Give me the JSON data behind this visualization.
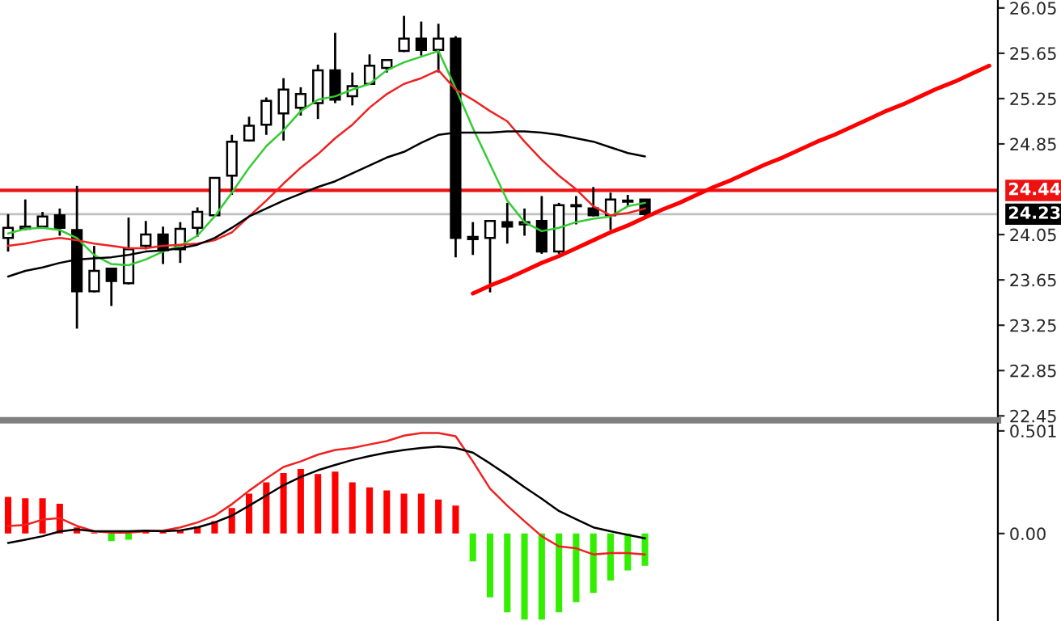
{
  "chart_data": [
    {
      "type": "candlestick",
      "tick_labels": "y",
      "categories": [
        null,
        null,
        null,
        null,
        null,
        null,
        null,
        null,
        null,
        null,
        null,
        null,
        null,
        null,
        null,
        null,
        null,
        null,
        null,
        null,
        null,
        null,
        null,
        null,
        null,
        null,
        null,
        null,
        null,
        null,
        null,
        null,
        null,
        null,
        null,
        null,
        null,
        null,
        null,
        null,
        null,
        null,
        null,
        null,
        null,
        null,
        null,
        null,
        null,
        null,
        null,
        null,
        null,
        null,
        null,
        null,
        null,
        null
      ],
      "ohlc": [
        [
          24.02,
          24.23,
          23.9,
          24.11
        ],
        [
          24.1,
          24.36,
          24.09,
          24.12
        ],
        [
          24.12,
          24.25,
          24.11,
          24.21
        ],
        [
          24.22,
          24.28,
          24.04,
          24.11
        ],
        [
          24.09,
          24.48,
          23.22,
          23.55
        ],
        [
          23.55,
          23.95,
          23.54,
          23.73
        ],
        [
          23.75,
          23.75,
          23.42,
          23.64
        ],
        [
          23.62,
          24.2,
          23.61,
          23.92
        ],
        [
          23.95,
          24.17,
          23.92,
          24.05
        ],
        [
          24.05,
          24.12,
          23.79,
          23.91
        ],
        [
          23.92,
          24.16,
          23.8,
          24.1
        ],
        [
          24.11,
          24.29,
          24.03,
          24.25
        ],
        [
          24.22,
          24.55,
          24.21,
          24.55
        ],
        [
          24.57,
          24.93,
          24.4,
          24.87
        ],
        [
          24.88,
          25.09,
          24.87,
          25.01
        ],
        [
          25.02,
          25.26,
          24.93,
          25.23
        ],
        [
          25.12,
          25.43,
          24.88,
          25.33
        ],
        [
          25.17,
          25.35,
          25.1,
          25.29
        ],
        [
          25.21,
          25.55,
          25.07,
          25.5
        ],
        [
          25.5,
          25.83,
          25.21,
          25.24
        ],
        [
          25.27,
          25.48,
          25.19,
          25.36
        ],
        [
          25.38,
          25.64,
          25.37,
          25.54
        ],
        [
          25.52,
          25.59,
          25.48,
          25.59
        ],
        [
          25.67,
          25.98,
          25.66,
          25.78
        ],
        [
          25.78,
          25.93,
          25.63,
          25.68
        ],
        [
          25.68,
          25.91,
          25.48,
          25.78
        ],
        [
          25.78,
          25.8,
          23.85,
          24.02
        ],
        [
          24.03,
          24.16,
          23.87,
          24.01
        ],
        [
          24.02,
          24.17,
          23.54,
          24.17
        ],
        [
          24.16,
          24.33,
          23.97,
          24.12
        ],
        [
          24.14,
          24.28,
          24.04,
          24.16
        ],
        [
          24.17,
          24.39,
          23.88,
          23.9
        ],
        [
          23.9,
          24.33,
          23.88,
          24.31
        ],
        [
          24.3,
          24.39,
          24.14,
          24.31
        ],
        [
          24.28,
          24.47,
          24.21,
          24.22
        ],
        [
          24.22,
          24.42,
          24.09,
          24.36
        ],
        [
          24.34,
          24.4,
          24.3,
          24.35
        ],
        [
          24.36,
          24.36,
          24.21,
          24.23
        ],
        null,
        null,
        null,
        null,
        null,
        null,
        null,
        null,
        null,
        null,
        null,
        null,
        null,
        null,
        null,
        null,
        null,
        null,
        null,
        null
      ],
      "series": [
        {
          "type": "line",
          "color": "#33cc33",
          "values": [
            24.06,
            24.1,
            24.11,
            24.09,
            24.02,
            23.87,
            23.79,
            23.78,
            23.83,
            23.9,
            23.95,
            24.04,
            24.21,
            24.42,
            24.64,
            24.83,
            24.97,
            25.14,
            25.24,
            25.27,
            25.33,
            25.38,
            25.5,
            25.57,
            25.62,
            25.67,
            25.34,
            24.99,
            24.67,
            24.35,
            24.16,
            24.08,
            24.11,
            24.16,
            24.19,
            24.21,
            24.3,
            24.33,
            null,
            null,
            null,
            null,
            null,
            null,
            null,
            null,
            null,
            null,
            null,
            null,
            null,
            null,
            null,
            null,
            null,
            null,
            null,
            null
          ]
        },
        {
          "type": "line",
          "color": "#ee2222",
          "values": [
            23.95,
            23.97,
            24.0,
            24.02,
            24.0,
            23.97,
            23.95,
            23.93,
            23.93,
            23.95,
            23.96,
            23.97,
            24.0,
            24.07,
            24.21,
            24.35,
            24.5,
            24.64,
            24.76,
            24.9,
            25.02,
            25.17,
            25.29,
            25.38,
            25.43,
            25.5,
            25.33,
            25.24,
            25.14,
            25.05,
            24.87,
            24.71,
            24.57,
            24.45,
            24.3,
            24.22,
            24.24,
            24.28,
            null,
            null,
            null,
            null,
            null,
            null,
            null,
            null,
            null,
            null,
            null,
            null,
            null,
            null,
            null,
            null,
            null,
            null,
            null,
            null
          ]
        },
        {
          "type": "line",
          "color": "#000000",
          "values": [
            23.68,
            23.73,
            23.76,
            23.8,
            23.83,
            23.84,
            23.85,
            23.87,
            23.9,
            23.91,
            23.93,
            23.96,
            24.02,
            24.11,
            24.21,
            24.28,
            24.35,
            24.41,
            24.47,
            24.52,
            24.59,
            24.66,
            24.73,
            24.78,
            24.86,
            24.93,
            24.95,
            24.95,
            24.95,
            24.96,
            24.96,
            24.95,
            24.93,
            24.9,
            24.87,
            24.82,
            24.77,
            24.74,
            null,
            null,
            null,
            null,
            null,
            null,
            null,
            null,
            null,
            null,
            null,
            null,
            null,
            null,
            null,
            null,
            null,
            null,
            null,
            null
          ]
        },
        {
          "type": "line",
          "color": "#ff0000",
          "values": [
            null,
            null,
            null,
            null,
            null,
            null,
            null,
            null,
            null,
            null,
            null,
            null,
            null,
            null,
            null,
            null,
            null,
            null,
            null,
            null,
            null,
            null,
            null,
            null,
            null,
            null,
            null,
            23.53,
            23.6,
            23.66,
            23.73,
            23.8,
            23.86,
            23.93,
            24.0,
            24.07,
            24.13,
            24.2,
            24.27,
            24.33,
            24.4,
            24.47,
            24.53,
            24.6,
            24.67,
            24.73,
            24.8,
            24.87,
            24.93,
            25.0,
            25.07,
            25.14,
            25.2,
            25.27,
            25.34,
            25.4,
            25.47,
            25.54
          ]
        }
      ],
      "ylim": [
        22.41,
        26.12
      ],
      "yticks": [
        22.45,
        22.85,
        23.25,
        23.65,
        24.05,
        24.85,
        25.25,
        25.65,
        26.05
      ],
      "ref_lines": [
        {
          "axis": "y",
          "value": 24.44,
          "label": "24.44",
          "color": "#ee1111"
        },
        {
          "axis": "y",
          "value": 24.23,
          "label": "24.23",
          "color": "#c0c0c0"
        }
      ]
    },
    {
      "type": "bar",
      "tick_labels": "y",
      "categories": [
        null,
        null,
        null,
        null,
        null,
        null,
        null,
        null,
        null,
        null,
        null,
        null,
        null,
        null,
        null,
        null,
        null,
        null,
        null,
        null,
        null,
        null,
        null,
        null,
        null,
        null,
        null,
        null,
        null,
        null,
        null,
        null,
        null,
        null,
        null,
        null,
        null,
        null,
        null,
        null,
        null,
        null,
        null,
        null,
        null,
        null,
        null,
        null,
        null,
        null,
        null,
        null,
        null,
        null,
        null,
        null,
        null,
        null
      ],
      "series": [
        {
          "type": "bar",
          "values": [
            0.179,
            0.172,
            0.172,
            0.145,
            0.03,
            0.005,
            -0.037,
            -0.03,
            0.01,
            0.01,
            0.015,
            0.035,
            0.06,
            0.125,
            0.195,
            0.25,
            0.295,
            0.315,
            0.29,
            0.302,
            0.25,
            0.225,
            0.21,
            0.195,
            0.195,
            0.166,
            0.136,
            -0.136,
            -0.312,
            -0.385,
            -0.42,
            -0.42,
            -0.385,
            -0.335,
            -0.29,
            -0.23,
            -0.18,
            -0.158,
            null,
            null,
            null,
            null,
            null,
            null,
            null,
            null,
            null,
            null,
            null,
            null,
            null,
            null,
            null,
            null,
            null,
            null,
            null,
            null
          ],
          "colors": [
            "#ff0000",
            "#ff0000",
            "#ff0000",
            "#ff0000",
            "#ff0000",
            "#ff0000",
            "#33ee00",
            "#33ee00",
            "#ff0000",
            "#ff0000",
            "#ff0000",
            "#ff0000",
            "#ff0000",
            "#ff0000",
            "#ff0000",
            "#ff0000",
            "#ff0000",
            "#ff0000",
            "#ff0000",
            "#ff0000",
            "#ff0000",
            "#ff0000",
            "#ff0000",
            "#ff0000",
            "#ff0000",
            "#ff0000",
            "#ff0000",
            "#33ee00",
            "#33ee00",
            "#33ee00",
            "#33ee00",
            "#33ee00",
            "#33ee00",
            "#33ee00",
            "#33ee00",
            "#33ee00",
            "#33ee00",
            "#33ee00",
            null,
            null,
            null,
            null,
            null,
            null,
            null,
            null,
            null,
            null,
            null,
            null,
            null,
            null,
            null,
            null,
            null,
            null,
            null,
            null
          ]
        },
        {
          "type": "line",
          "color": "#ee2222",
          "values": [
            0.037,
            0.042,
            0.068,
            0.075,
            0.037,
            0.011,
            0.004,
            0.004,
            0.011,
            0.014,
            0.03,
            0.054,
            0.087,
            0.143,
            0.209,
            0.269,
            0.325,
            0.352,
            0.385,
            0.408,
            0.418,
            0.435,
            0.451,
            0.478,
            0.491,
            0.491,
            0.475,
            0.352,
            0.219,
            0.136,
            0.06,
            -0.013,
            -0.063,
            -0.072,
            -0.102,
            -0.095,
            -0.095,
            -0.102,
            null,
            null,
            null,
            null,
            null,
            null,
            null,
            null,
            null,
            null,
            null,
            null,
            null,
            null,
            null,
            null,
            null,
            null,
            null,
            null
          ]
        },
        {
          "type": "line",
          "color": "#000000",
          "values": [
            -0.046,
            -0.03,
            -0.013,
            0.01,
            0.02,
            0.011,
            0.011,
            0.011,
            0.014,
            0.011,
            0.015,
            0.03,
            0.054,
            0.087,
            0.136,
            0.186,
            0.236,
            0.276,
            0.309,
            0.335,
            0.359,
            0.378,
            0.395,
            0.408,
            0.418,
            0.425,
            0.418,
            0.395,
            0.342,
            0.286,
            0.226,
            0.17,
            0.11,
            0.07,
            0.03,
            0.011,
            -0.007,
            -0.023,
            null,
            null,
            null,
            null,
            null,
            null,
            null,
            null,
            null,
            null,
            null,
            null,
            null,
            null,
            null,
            null,
            null,
            null,
            null,
            null
          ]
        }
      ],
      "ylim": [
        -0.427,
        0.537
      ],
      "yticks": [
        0.501,
        {
          "value": 0,
          "label": "0.00"
        }
      ]
    }
  ]
}
